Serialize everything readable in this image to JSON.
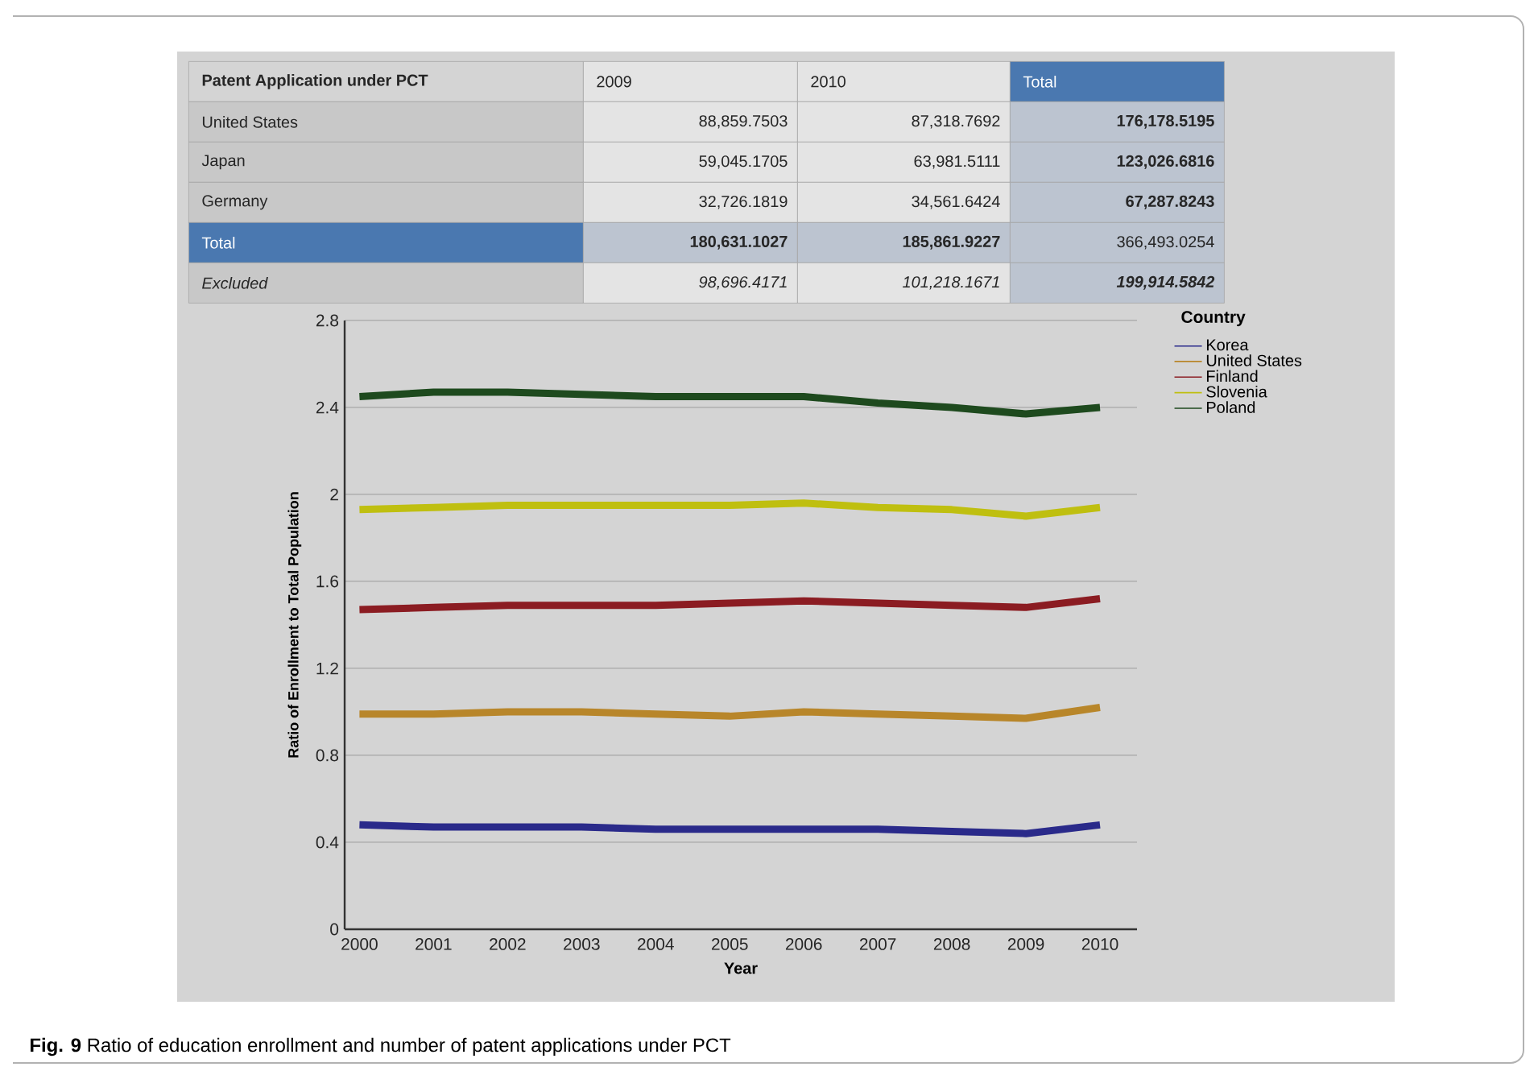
{
  "chart_data": [
    {
      "type": "other",
      "annotations": [
        "Patent Application under PCT",
        "2009",
        "2010",
        "Total",
        "United States",
        "88,859.7503",
        "87,318.7692",
        "176,178.5195",
        "Japan",
        "59,045.1705",
        "63,981.5111",
        "123,026.6816",
        "Germany",
        "32,726.1819",
        "34,561.6424",
        "67,287.8243",
        "Total",
        "180,631.1027",
        "185,861.9227",
        "366,493.0254",
        "Excluded",
        "98,696.4171",
        "101,218.1671",
        "199,914.5842"
      ]
    },
    {
      "type": "line",
      "xlabel": "Year",
      "ylabel": "Ratio of Enrollment to Total Population",
      "legend_title": "Country",
      "categories": [
        "2000",
        "2001",
        "2002",
        "2003",
        "2004",
        "2005",
        "2006",
        "2007",
        "2008",
        "2009",
        "2010"
      ],
      "series": [
        {
          "name": "Korea",
          "color": "#2a2a8a",
          "values": [
            0.48,
            0.47,
            0.47,
            0.47,
            0.46,
            0.46,
            0.46,
            0.46,
            0.45,
            0.44,
            0.48
          ]
        },
        {
          "name": "United States",
          "color": "#b8862a",
          "values": [
            0.99,
            0.99,
            1.0,
            1.0,
            0.99,
            0.98,
            1.0,
            0.99,
            0.98,
            0.97,
            1.02
          ]
        },
        {
          "name": "Finland",
          "color": "#8b1c22",
          "values": [
            1.47,
            1.48,
            1.49,
            1.49,
            1.49,
            1.5,
            1.51,
            1.5,
            1.49,
            1.48,
            1.52
          ]
        },
        {
          "name": "Slovenia",
          "color": "#bfbf10",
          "values": [
            1.93,
            1.94,
            1.95,
            1.95,
            1.95,
            1.95,
            1.96,
            1.94,
            1.93,
            1.9,
            1.94
          ]
        },
        {
          "name": "Poland",
          "color": "#1e4a1e",
          "values": [
            2.45,
            2.47,
            2.47,
            2.46,
            2.45,
            2.45,
            2.45,
            2.42,
            2.4,
            2.37,
            2.4
          ]
        }
      ],
      "ylim": [
        0,
        2.8
      ],
      "yticks": [
        0,
        0.4,
        0.8,
        1.2,
        1.6,
        2,
        2.4,
        2.8
      ],
      "grid": "y",
      "legend": "right",
      "marker": "none",
      "line_style": "solid",
      "annotations": [
        "**Fig. 9** Ratio of education enrollment and number of patent applications under PCT"
      ]
    }
  ]
}
